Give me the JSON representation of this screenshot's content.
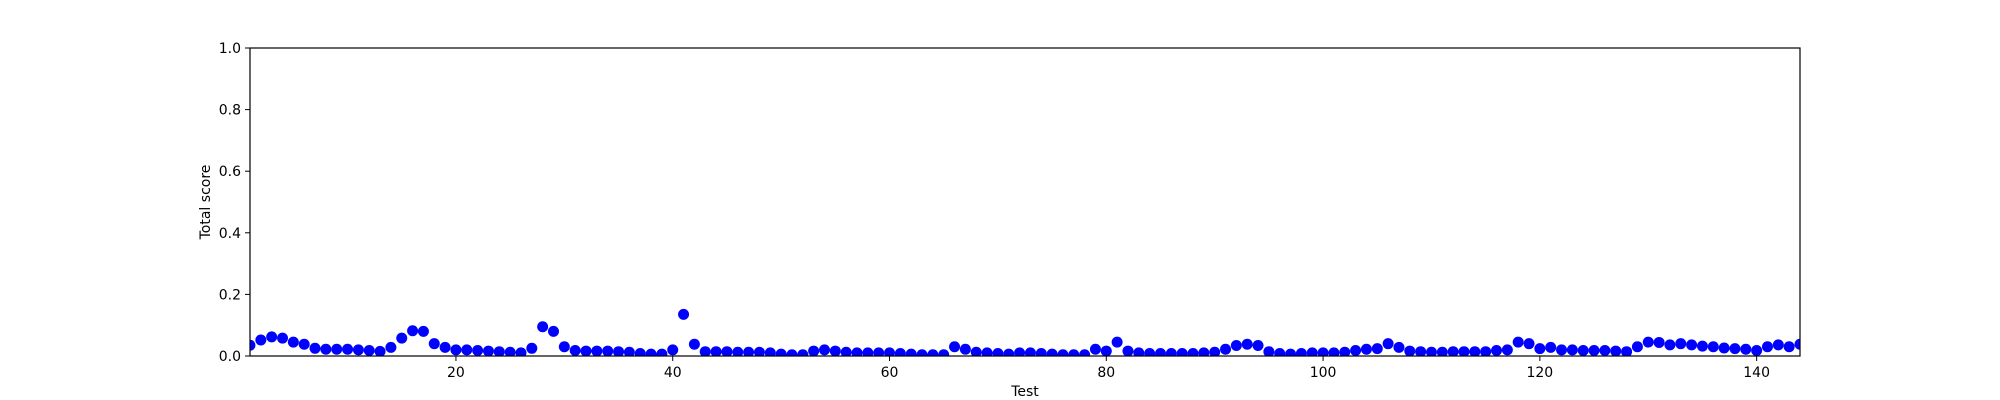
{
  "chart_data": {
    "type": "scatter",
    "title": "",
    "xlabel": "Test",
    "ylabel": "Total score",
    "xlim": [
      1,
      144
    ],
    "ylim": [
      0.0,
      1.0
    ],
    "xticks": [
      20,
      40,
      60,
      80,
      100,
      120,
      140
    ],
    "yticks": [
      "0.0",
      "0.2",
      "0.4",
      "0.6",
      "0.8",
      "1.0"
    ],
    "grid": false,
    "marker_color": "#0000ff",
    "x": [
      1,
      2,
      3,
      4,
      5,
      6,
      7,
      8,
      9,
      10,
      11,
      12,
      13,
      14,
      15,
      16,
      17,
      18,
      19,
      20,
      21,
      22,
      23,
      24,
      25,
      26,
      27,
      28,
      29,
      30,
      31,
      32,
      33,
      34,
      35,
      36,
      37,
      38,
      39,
      40,
      41,
      42,
      43,
      44,
      45,
      46,
      47,
      48,
      49,
      50,
      51,
      52,
      53,
      54,
      55,
      56,
      57,
      58,
      59,
      60,
      61,
      62,
      63,
      64,
      65,
      66,
      67,
      68,
      69,
      70,
      71,
      72,
      73,
      74,
      75,
      76,
      77,
      78,
      79,
      80,
      81,
      82,
      83,
      84,
      85,
      86,
      87,
      88,
      89,
      90,
      91,
      92,
      93,
      94,
      95,
      96,
      97,
      98,
      99,
      100,
      101,
      102,
      103,
      104,
      105,
      106,
      107,
      108,
      109,
      110,
      111,
      112,
      113,
      114,
      115,
      116,
      117,
      118,
      119,
      120,
      121,
      122,
      123,
      124,
      125,
      126,
      127,
      128,
      129,
      130,
      131,
      132,
      133,
      134,
      135,
      136,
      137,
      138,
      139,
      140,
      141,
      142,
      143,
      144
    ],
    "y": [
      0.035,
      0.052,
      0.062,
      0.058,
      0.045,
      0.038,
      0.025,
      0.022,
      0.022,
      0.022,
      0.02,
      0.018,
      0.015,
      0.028,
      0.058,
      0.082,
      0.08,
      0.04,
      0.028,
      0.02,
      0.02,
      0.018,
      0.016,
      0.014,
      0.012,
      0.01,
      0.025,
      0.095,
      0.08,
      0.03,
      0.018,
      0.016,
      0.016,
      0.016,
      0.014,
      0.012,
      0.008,
      0.006,
      0.006,
      0.02,
      0.135,
      0.038,
      0.014,
      0.014,
      0.014,
      0.012,
      0.012,
      0.012,
      0.01,
      0.006,
      0.004,
      0.004,
      0.016,
      0.02,
      0.016,
      0.012,
      0.01,
      0.01,
      0.01,
      0.01,
      0.008,
      0.006,
      0.004,
      0.004,
      0.004,
      0.03,
      0.022,
      0.012,
      0.01,
      0.008,
      0.006,
      0.01,
      0.01,
      0.008,
      0.006,
      0.004,
      0.004,
      0.004,
      0.022,
      0.016,
      0.045,
      0.016,
      0.01,
      0.008,
      0.008,
      0.008,
      0.008,
      0.008,
      0.01,
      0.012,
      0.022,
      0.034,
      0.038,
      0.034,
      0.014,
      0.008,
      0.006,
      0.008,
      0.01,
      0.01,
      0.01,
      0.012,
      0.018,
      0.022,
      0.024,
      0.04,
      0.028,
      0.016,
      0.014,
      0.012,
      0.012,
      0.014,
      0.014,
      0.014,
      0.014,
      0.018,
      0.02,
      0.045,
      0.04,
      0.024,
      0.028,
      0.02,
      0.02,
      0.018,
      0.018,
      0.018,
      0.016,
      0.014,
      0.03,
      0.045,
      0.044,
      0.036,
      0.04,
      0.036,
      0.032,
      0.03,
      0.026,
      0.024,
      0.022,
      0.018,
      0.03,
      0.036,
      0.03,
      0.038
    ]
  }
}
